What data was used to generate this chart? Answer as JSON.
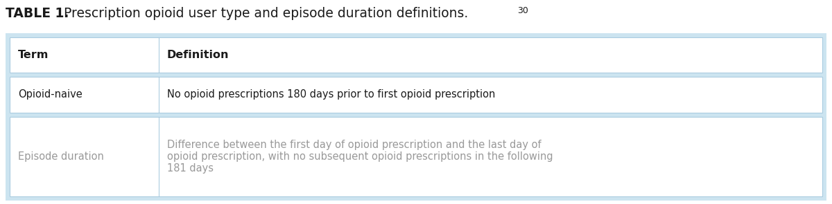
{
  "title_bold": "TABLE 1.",
  "title_normal": " Prescription opioid user type and episode duration definitions.",
  "title_superscript": "30",
  "title_fontsize": 13.5,
  "sup_fontsize": 9,
  "outer_bg": "#cce4f0",
  "inner_bg": "#ffffff",
  "border_color": "#aacce0",
  "col1_header": "Term",
  "col2_header": "Definition",
  "header_fontsize": 11.5,
  "body_fontsize": 10.5,
  "normal_text_color": "#1a1a1a",
  "gray_text_color": "#999999",
  "row1_term": "Opioid-naive",
  "row1_def": "No opioid prescriptions 180 days prior to first opioid prescription",
  "row2_term": "Episode duration",
  "row2_def_line1": "Difference between the first day of opioid prescription and the last day of",
  "row2_def_line2": "opioid prescription, with no subsequent opioid prescriptions in the following",
  "row2_def_line3": "181 days"
}
